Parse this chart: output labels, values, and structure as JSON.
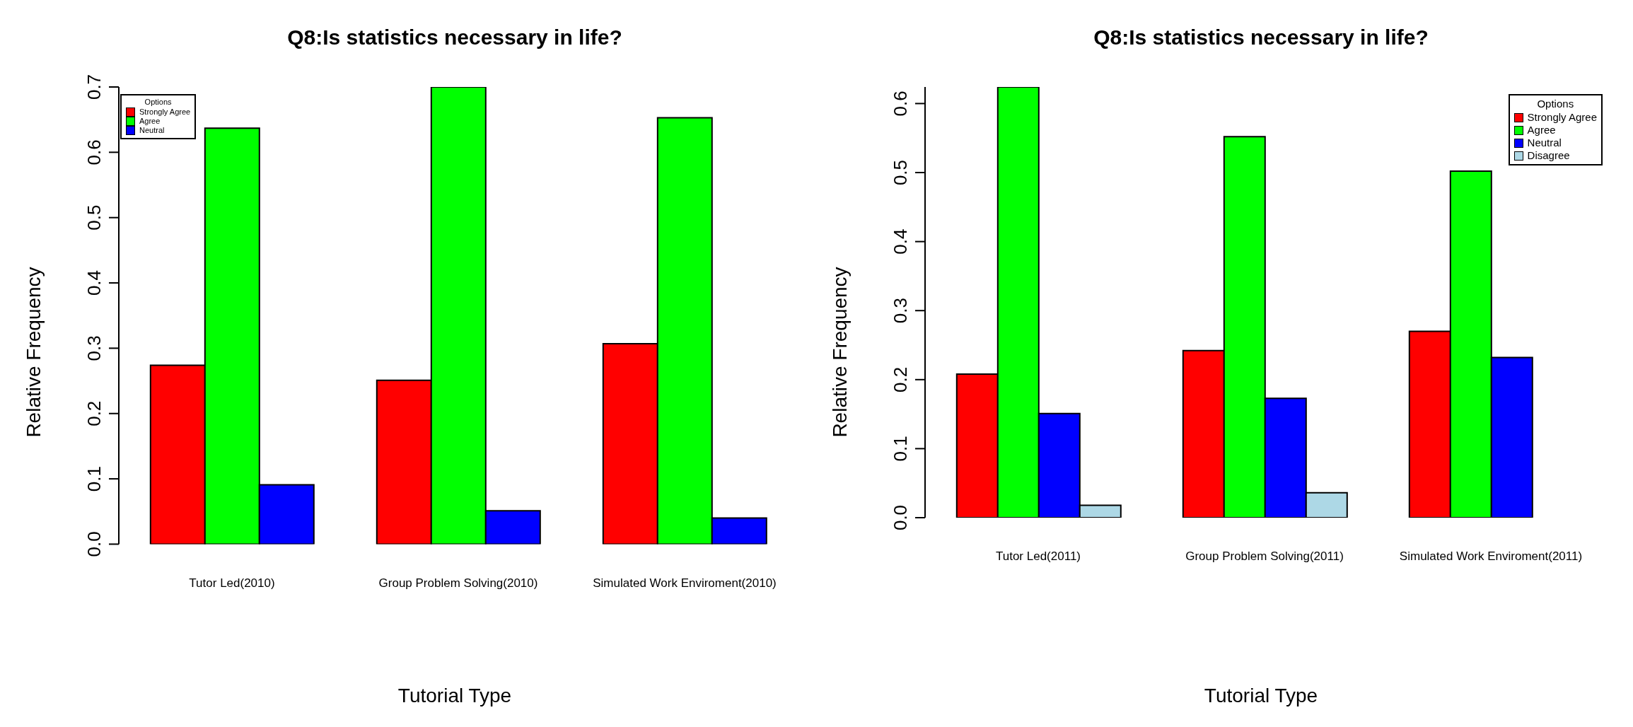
{
  "chart_data": [
    {
      "type": "bar",
      "title": "Q8:Is statistics necessary in life?",
      "xlabel": "Tutorial Type",
      "ylabel": "Relative Frequency",
      "legend_title": "Options",
      "legend": "top left",
      "categories": [
        "Tutor Led(2010)",
        "Group Problem Solving(2010)",
        "Simulated Work Enviroment(2010)"
      ],
      "series": [
        {
          "name": "Strongly Agree",
          "color": "#ff0000",
          "values": [
            0.274,
            0.251,
            0.307
          ]
        },
        {
          "name": "Agree",
          "color": "#00ff00",
          "values": [
            0.637,
            0.7,
            0.653
          ]
        },
        {
          "name": "Neutral",
          "color": "#0000ff",
          "values": [
            0.091,
            0.051,
            0.04
          ]
        }
      ],
      "ylim": [
        0,
        0.7
      ],
      "yticks": [
        {
          "value": 0,
          "label": "0.0"
        },
        0.1,
        0.2,
        0.3,
        0.4,
        0.5,
        0.6,
        0.7
      ]
    },
    {
      "type": "bar",
      "title": "Q8:Is statistics necessary in life?",
      "xlabel": "Tutorial Type",
      "ylabel": "Relative Frequency",
      "legend_title": "Options",
      "legend": "top right",
      "categories": [
        "Tutor Led(2011)",
        "Group Problem Solving(2011)",
        "Simulated Work Enviroment(2011)"
      ],
      "series": [
        {
          "name": "Strongly Agree",
          "color": "#ff0000",
          "values": [
            0.208,
            0.242,
            0.27
          ]
        },
        {
          "name": "Agree",
          "color": "#00ff00",
          "values": [
            0.624,
            0.552,
            0.502
          ]
        },
        {
          "name": "Neutral",
          "color": "#0000ff",
          "values": [
            0.151,
            0.173,
            0.232
          ]
        },
        {
          "name": "Disagree",
          "color": "#add8e6",
          "values": [
            0.018,
            0.036,
            0
          ]
        }
      ],
      "ylim": [
        0,
        0.624
      ],
      "yticks": [
        {
          "value": 0,
          "label": "0.0"
        },
        0.1,
        0.2,
        0.3,
        0.4,
        0.5,
        0.6
      ]
    }
  ]
}
